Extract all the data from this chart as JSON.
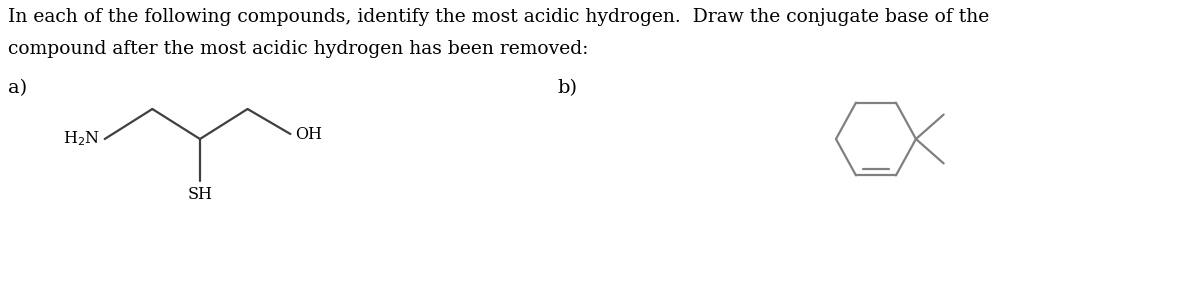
{
  "bg_color": "#ffffff",
  "text_color": "#000000",
  "molecule_color": "#404040",
  "ring_color": "#808080",
  "title_line1": "In each of the following compounds, identify the most acidic hydrogen.  Draw the conjugate base of the",
  "title_line2": "compound after the most acidic hydrogen has been removed:",
  "label_a": "a)",
  "label_b": "b)",
  "font_size_title": 13.5,
  "font_size_labels": 14
}
